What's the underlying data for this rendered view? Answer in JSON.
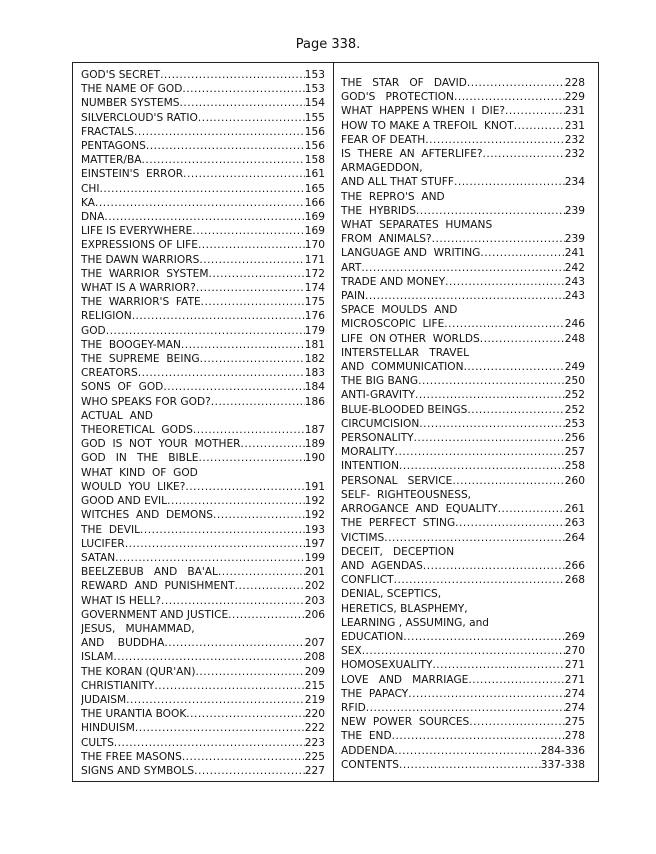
{
  "header": {
    "title": "Page 338."
  },
  "left_column": [
    {
      "t": "GOD'S SECRET",
      "p": "153"
    },
    {
      "t": "THE NAME OF GOD",
      "p": "153"
    },
    {
      "t": "NUMBER SYSTEMS",
      "p": "154"
    },
    {
      "t": "SILVERCLOUD'S RATIO",
      "p": "155"
    },
    {
      "t": "FRACTALS",
      "p": "156"
    },
    {
      "t": "PENTAGONS",
      "p": "156"
    },
    {
      "t": "MATTER/BA",
      "p": "158"
    },
    {
      "t": "EINSTEIN'S  ERROR",
      "p": "161"
    },
    {
      "t": "CHI",
      "p": "165"
    },
    {
      "t": "KA",
      "p": "166"
    },
    {
      "t": "DNA",
      "p": "169"
    },
    {
      "t": "LIFE IS EVERYWHERE",
      "p": "169"
    },
    {
      "t": "EXPRESSIONS OF LIFE",
      "p": "170"
    },
    {
      "t": "THE DAWN WARRIORS",
      "p": "171"
    },
    {
      "t": "THE  WARRIOR  SYSTEM",
      "p": "172"
    },
    {
      "t": "WHAT IS A WARRIOR?",
      "p": "174"
    },
    {
      "t": "THE  WARRIOR'S  FATE",
      "p": "175"
    },
    {
      "t": "RELIGION",
      "p": "176"
    },
    {
      "t": "GOD",
      "p": "179"
    },
    {
      "t": "THE  BOOGEY-MAN",
      "p": "181"
    },
    {
      "t": "THE  SUPREME  BEING",
      "p": "182"
    },
    {
      "t": "CREATORS",
      "p": "183"
    },
    {
      "t": "SONS  OF  GOD",
      "p": "184"
    },
    {
      "t": "WHO SPEAKS FOR GOD?",
      "p": "186"
    },
    {
      "t": "ACTUAL  AND"
    },
    {
      "t": "THEORETICAL  GODS",
      "p": "187"
    },
    {
      "t": "GOD  IS  NOT  YOUR  MOTHER",
      "p": "189"
    },
    {
      "t": "GOD   IN   THE   BIBLE",
      "p": "190"
    },
    {
      "t": "WHAT  KIND  OF  GOD"
    },
    {
      "t": "WOULD  YOU  LIKE?",
      "p": "191"
    },
    {
      "t": "GOOD AND EVIL",
      "p": "192"
    },
    {
      "t": "WITCHES  AND  DEMONS",
      "p": "192"
    },
    {
      "t": "THE  DEVIL",
      "p": "193"
    },
    {
      "t": "LUCIFER",
      "p": "197"
    },
    {
      "t": "SATAN",
      "p": "199"
    },
    {
      "t": "BEELZEBUB   AND   BA'AL",
      "p": "201"
    },
    {
      "t": "REWARD  AND  PUNISHMENT",
      "p": "202"
    },
    {
      "t": "WHAT IS HELL?",
      "p": "203"
    },
    {
      "t": "GOVERNMENT AND JUSTICE",
      "p": "206"
    },
    {
      "t": "JESUS,   MUHAMMAD,"
    },
    {
      "t": "AND    BUDDHA",
      "p": "207"
    },
    {
      "t": "ISLAM",
      "p": "208"
    },
    {
      "t": "THE KORAN (QUR'AN)",
      "p": "209"
    },
    {
      "t": "CHRISTIANITY",
      "p": "215"
    },
    {
      "t": "JUDAISM",
      "p": "219"
    },
    {
      "t": "THE URANTIA BOOK",
      "p": "220"
    },
    {
      "t": "HINDUISM",
      "p": "222"
    },
    {
      "t": "CULTS",
      "p": "223"
    },
    {
      "t": "THE FREE MASONS",
      "p": "225"
    },
    {
      "t": "SIGNS AND SYMBOLS",
      "p": "227"
    }
  ],
  "right_column": [
    {
      "t": "THE   STAR   OF   DAVID",
      "p": "228"
    },
    {
      "t": "GOD'S   PROTECTION",
      "p": "229"
    },
    {
      "t": "WHAT  HAPPENS WHEN  I  DIE?",
      "p": "231"
    },
    {
      "t": "HOW TO MAKE A TREFOIL  KNOT",
      "p": "231"
    },
    {
      "t": "FEAR OF DEATH",
      "p": "232"
    },
    {
      "t": "IS  THERE  AN  AFTERLIFE?",
      "p": "232"
    },
    {
      "t": "ARMAGEDDON,"
    },
    {
      "t": "AND ALL THAT STUFF",
      "p": "234"
    },
    {
      "t": "THE  REPRO'S  AND"
    },
    {
      "t": "THE  HYBRIDS",
      "p": "239"
    },
    {
      "t": "WHAT  SEPARATES  HUMANS"
    },
    {
      "t": "FROM  ANIMALS?",
      "p": "239"
    },
    {
      "t": "LANGUAGE AND  WRITING",
      "p": "241"
    },
    {
      "t": "ART",
      "p": "242"
    },
    {
      "t": "TRADE AND MONEY",
      "p": "243"
    },
    {
      "t": "PAIN",
      "p": "243"
    },
    {
      "t": "SPACE  MOULDS  AND"
    },
    {
      "t": "MICROSCOPIC  LIFE",
      "p": "246"
    },
    {
      "t": "LIFE  ON OTHER  WORLDS",
      "p": "248"
    },
    {
      "t": "INTERSTELLAR   TRAVEL"
    },
    {
      "t": "AND  COMMUNICATION",
      "p": "249"
    },
    {
      "t": "THE BIG BANG",
      "p": "250"
    },
    {
      "t": "ANTI-GRAVITY",
      "p": "252"
    },
    {
      "t": "BLUE-BLOODED BEINGS",
      "p": "252"
    },
    {
      "t": "CIRCUMCISION",
      "p": "253"
    },
    {
      "t": "PERSONALITY",
      "p": "256"
    },
    {
      "t": "MORALITY",
      "p": "257"
    },
    {
      "t": "INTENTION",
      "p": "258"
    },
    {
      "t": "PERSONAL   SERVICE",
      "p": "260"
    },
    {
      "t": "SELF-  RIGHTEOUSNESS,"
    },
    {
      "t": "ARROGANCE  AND  EQUALITY",
      "p": "261"
    },
    {
      "t": "THE  PERFECT  STING",
      "p": "263"
    },
    {
      "t": "VICTIMS",
      "p": "264"
    },
    {
      "t": "DECEIT,   DECEPTION"
    },
    {
      "t": "AND  AGENDAS",
      "p": "266"
    },
    {
      "t": "CONFLICT",
      "p": "268"
    },
    {
      "t": "DENIAL, SCEPTICS,"
    },
    {
      "t": "HERETICS, BLASPHEMY,"
    },
    {
      "t": "LEARNING , ASSUMING, and"
    },
    {
      "t": "EDUCATION",
      "p": "269"
    },
    {
      "t": "SEX",
      "p": "270"
    },
    {
      "t": "HOMOSEXUALITY",
      "p": "271"
    },
    {
      "t": "LOVE   AND   MARRIAGE",
      "p": "271"
    },
    {
      "t": "THE  PAPACY",
      "p": "274"
    },
    {
      "t": "RFID",
      "p": "274"
    },
    {
      "t": "NEW  POWER  SOURCES",
      "p": "275"
    },
    {
      "t": "THE  END",
      "p": "278"
    },
    {
      "t": "ADDENDA",
      "p": "284-336"
    },
    {
      "t": "CONTENTS",
      "p": "337-338"
    }
  ]
}
